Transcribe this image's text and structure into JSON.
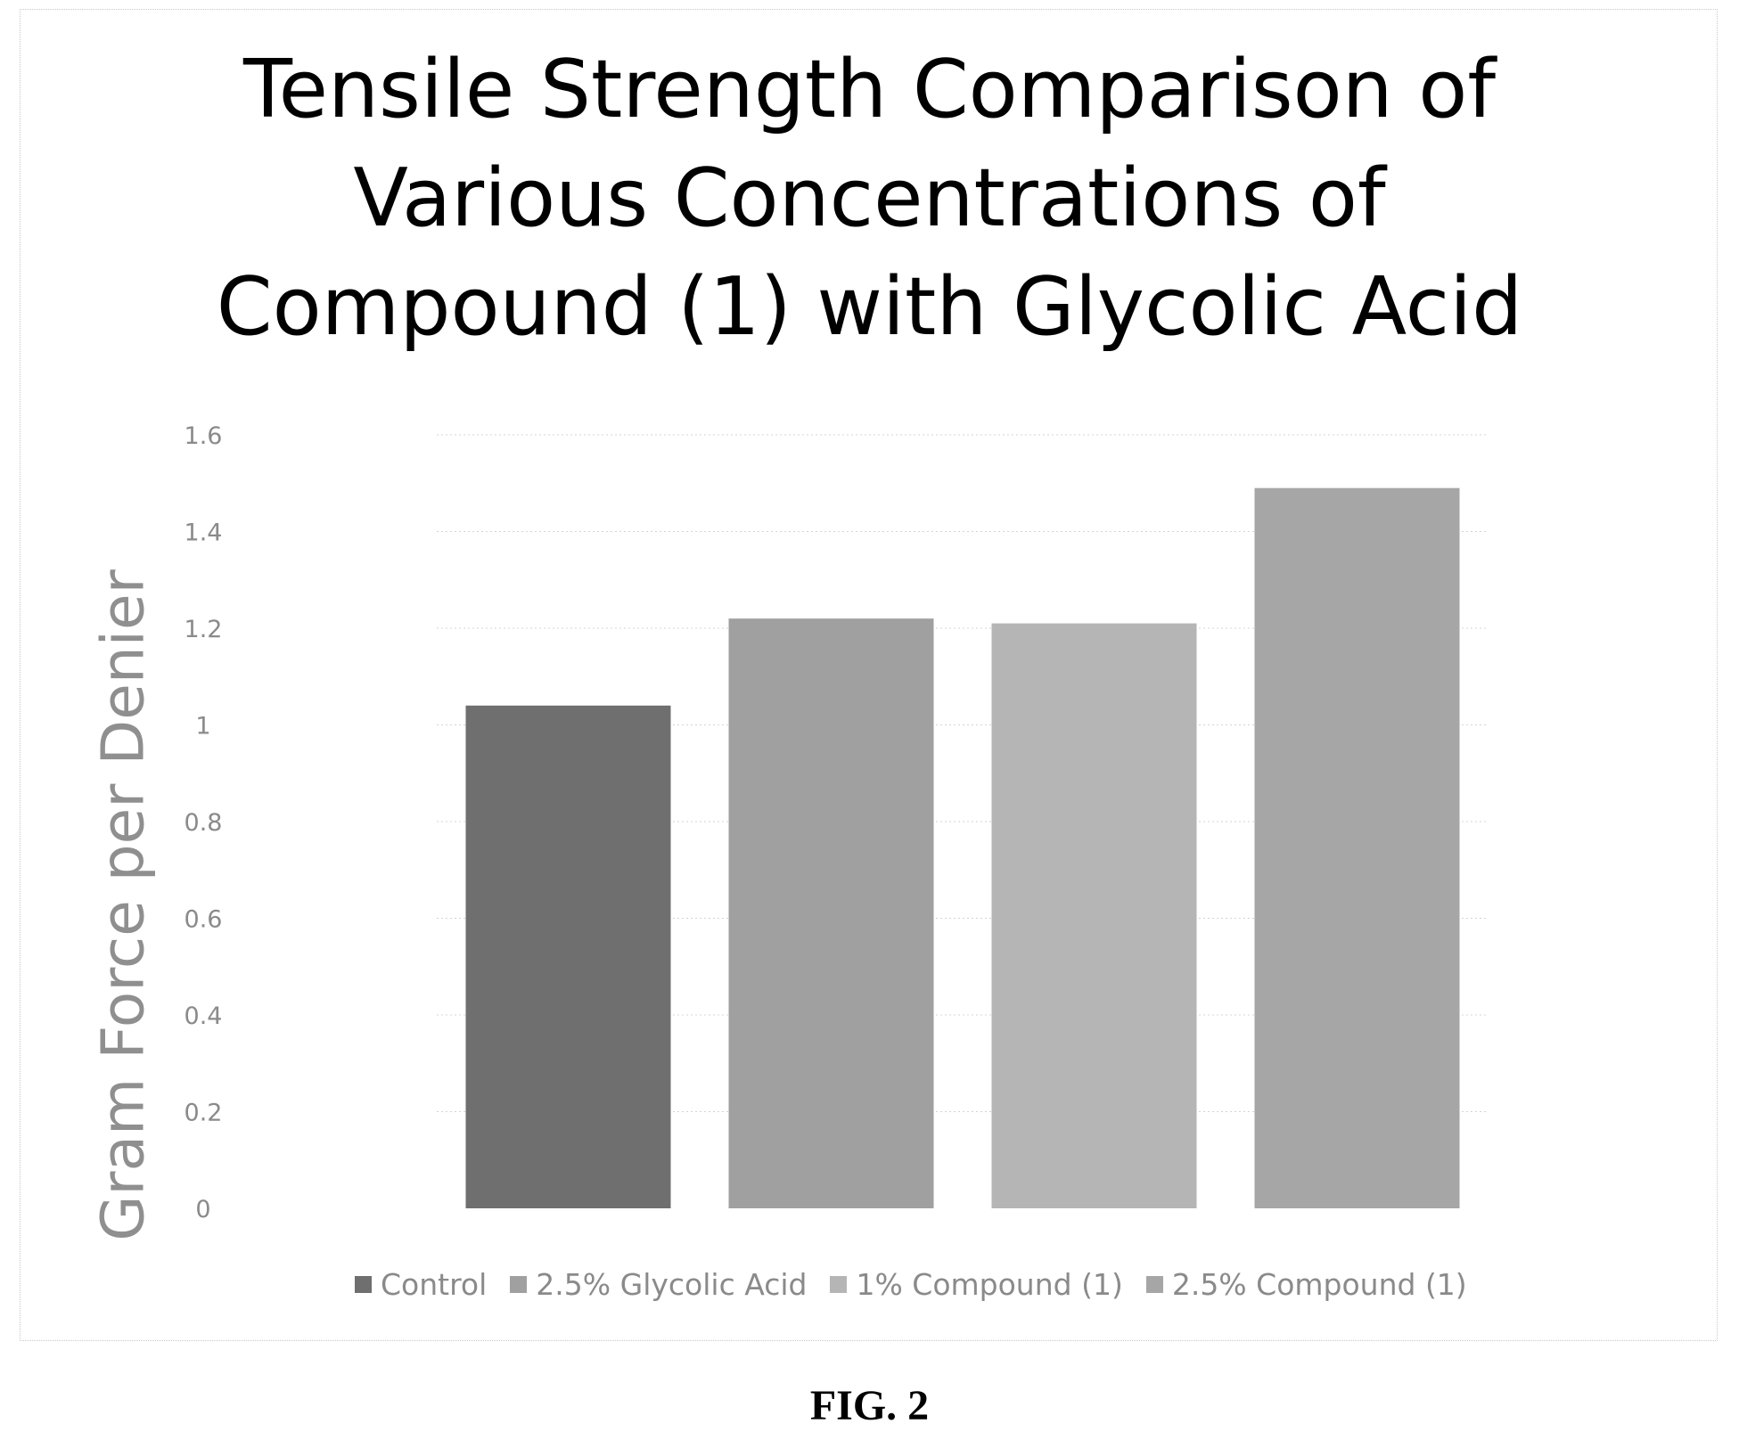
{
  "chart_data": {
    "type": "bar",
    "title_lines": [
      "Tensile Strength Comparison of",
      "Various Concentrations of",
      "Compound (1) with Glycolic Acid"
    ],
    "xlabel": "",
    "ylabel": "Gram Force per Denier",
    "ylim": [
      0,
      1.6
    ],
    "yticks": [
      {
        "value": 0,
        "label": "0"
      },
      {
        "value": 0.2,
        "label": "0.2"
      },
      {
        "value": 0.4,
        "label": "0.4"
      },
      {
        "value": 0.6,
        "label": "0.6"
      },
      {
        "value": 0.8,
        "label": "0.8"
      },
      {
        "value": 1,
        "label": "1"
      },
      {
        "value": 1.2,
        "label": "1.2"
      },
      {
        "value": 1.4,
        "label": "1.4"
      },
      {
        "value": 1.6,
        "label": "1.6"
      }
    ],
    "grid": true,
    "legend_position": "bottom",
    "series": [
      {
        "name": "Control",
        "value": 1.04,
        "color": "#6f6f6f"
      },
      {
        "name": "2.5% Glycolic Acid",
        "value": 1.22,
        "color": "#a0a0a0"
      },
      {
        "name": "1% Compound (1)",
        "value": 1.21,
        "color": "#b5b5b5"
      },
      {
        "name": "2.5% Compound (1)",
        "value": 1.49,
        "color": "#a6a6a6"
      }
    ]
  },
  "figure_label": "FIG. 2"
}
